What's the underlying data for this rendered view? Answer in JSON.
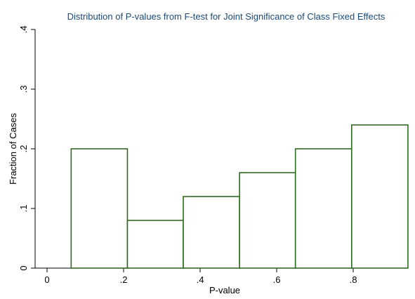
{
  "chart_data": {
    "type": "bar",
    "title": "Distribution of P-values from F-test for Joint Significance of Class Fixed Effects",
    "xlabel": "P-value",
    "ylabel": "Fraction of Cases",
    "xlim": [
      0,
      0.9
    ],
    "ylim": [
      0,
      0.4
    ],
    "x_ticks": [
      0,
      0.2,
      0.4,
      0.6,
      0.8
    ],
    "x_tick_labels": [
      "0",
      ".2",
      ".4",
      ".6",
      ".8"
    ],
    "y_ticks": [
      0,
      0.1,
      0.2,
      0.3,
      0.4
    ],
    "y_tick_labels": [
      "0",
      ".1",
      ".2",
      ".3",
      ".4"
    ],
    "bins": [
      {
        "start": 0.063,
        "end": 0.21,
        "value": 0.2
      },
      {
        "start": 0.21,
        "end": 0.356,
        "value": 0.08
      },
      {
        "start": 0.356,
        "end": 0.503,
        "value": 0.12
      },
      {
        "start": 0.503,
        "end": 0.649,
        "value": 0.16
      },
      {
        "start": 0.649,
        "end": 0.796,
        "value": 0.2
      },
      {
        "start": 0.796,
        "end": 0.943,
        "value": 0.24
      }
    ],
    "grid": false,
    "legend": "none",
    "bar_color": "#2f6b1f"
  }
}
